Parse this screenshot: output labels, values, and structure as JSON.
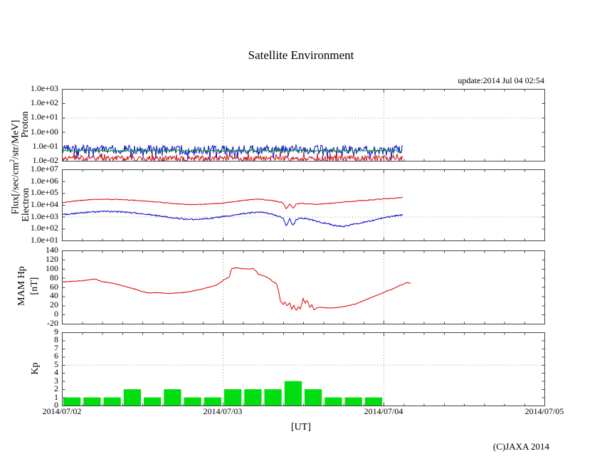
{
  "page": {
    "update_text": "update:2014 Jul 04 02:54",
    "copyright": "(C)JAXA 2014"
  },
  "labels": {
    "flux_pre": "Flux[/sec/cm",
    "flux_sup": "2",
    "flux_post": "/str/MeV]",
    "proton": "Proton",
    "electron": "Electron",
    "mam_line1": "MAM Hp",
    "mam_line2": "[nT]",
    "kp": "Kp"
  },
  "chart_data": {
    "type": "multi-panel",
    "title": "Satellite Environment",
    "xlabel": "[UT]",
    "x_categories_days": [
      "2014/07/02",
      "2014/07/03",
      "2014/07/04",
      "2014/07/05"
    ],
    "x_range_hours": [
      0,
      72
    ],
    "x_major_step_hours": 24,
    "x_minor_step_hours": 3,
    "grid": "dotted at day boundaries; horizontal dotted at Proton 1.0e+01, Electron 1.0e+03, Kp 5",
    "panels": [
      {
        "id": "proton",
        "axis_label": "Proton",
        "yscale": "log10",
        "ylim_log10": [
          -2,
          3
        ],
        "y_ticks": {
          "labels": [
            "1.0e+03",
            "1.0e+02",
            "1.0e+01",
            "1.0e+00",
            "1.0e-01",
            "1.0e-02"
          ],
          "values_log10": [
            3,
            2,
            1,
            0,
            -1,
            -2
          ]
        },
        "grid_y_log10": [
          1
        ],
        "render": "noise_band",
        "data_start_hour": 0,
        "data_end_hour": 50.9,
        "series": [
          {
            "name": "proton-channel-red",
            "color": "#cc1111",
            "center_log10": -1.85,
            "amp_log10": 0.2,
            "spike_prob": 0.1,
            "spike_amp_log10": 0.3,
            "spike_dir": 1
          },
          {
            "name": "proton-channel-blue",
            "color": "#1111cc",
            "center_log10": -1.22,
            "amp_log10": 0.32,
            "spike_prob": 0.1,
            "spike_amp_log10": 0.42,
            "spike_dir": -1
          },
          {
            "name": "proton-channel-green",
            "color": "#00a020",
            "center_log10": -1.3,
            "amp_log10": 0.06,
            "spike_prob": 0.03,
            "spike_amp_log10": 0.12,
            "spike_dir": 1
          }
        ]
      },
      {
        "id": "electron",
        "axis_label": "Electron",
        "yscale": "log10",
        "ylim_log10": [
          1,
          7
        ],
        "y_ticks": {
          "labels": [
            "1.0e+07",
            "1.0e+06",
            "1.0e+05",
            "1.0e+04",
            "1.0e+03",
            "1.0e+02",
            "1.0e+01"
          ],
          "values_log10": [
            7,
            6,
            5,
            4,
            3,
            2,
            1
          ]
        },
        "grid_y_log10": [
          3
        ],
        "render": "lines",
        "series": [
          {
            "name": "electron-high",
            "color": "#dd0000",
            "noise_log10": 0.035,
            "hours": [
              0,
              2,
              4,
              6,
              8,
              10,
              12,
              14,
              16,
              18,
              20,
              22,
              24,
              26,
              28,
              29,
              30,
              31,
              32,
              33,
              33.5,
              34,
              34.5,
              35,
              35.5,
              36,
              37,
              38,
              39,
              40,
              41,
              42,
              43,
              44,
              45,
              46,
              47,
              48,
              49,
              50,
              50.9
            ],
            "values": [
              16000,
              21000,
              27000,
              30000,
              29000,
              26000,
              22000,
              18000,
              14000,
              11500,
              10500,
              12000,
              14000,
              20000,
              27000,
              30000,
              28000,
              25000,
              20000,
              15000,
              4500,
              13000,
              5000,
              12000,
              13000,
              13500,
              12000,
              11000,
              12000,
              13500,
              15000,
              17000,
              19000,
              21000,
              23500,
              26000,
              29000,
              32000,
              35000,
              39000,
              42000
            ]
          },
          {
            "name": "electron-low",
            "color": "#0000cc",
            "noise_log10": 0.06,
            "hours": [
              0,
              2,
              4,
              6,
              8,
              10,
              12,
              14,
              16,
              18,
              20,
              22,
              24,
              26,
              28,
              29,
              30,
              31,
              32,
              33,
              33.5,
              34,
              34.5,
              35,
              35.5,
              36,
              37,
              38,
              39,
              40,
              41,
              42,
              43,
              44,
              45,
              46,
              47,
              48,
              49,
              50,
              50.9
            ],
            "values": [
              1500,
              1900,
              2400,
              2800,
              2700,
              2300,
              1800,
              1300,
              900,
              650,
              600,
              750,
              1000,
              1500,
              2100,
              2400,
              2300,
              1900,
              1300,
              800,
              150,
              700,
              180,
              600,
              700,
              750,
              600,
              420,
              300,
              230,
              170,
              150,
              200,
              260,
              340,
              450,
              600,
              800,
              1000,
              1250,
              1400
            ]
          }
        ]
      },
      {
        "id": "mam-hp",
        "axis_label": "MAM Hp [nT]",
        "yscale": "linear",
        "ylim": [
          -20,
          140
        ],
        "y_ticks": {
          "labels": [
            "140",
            "120",
            "100",
            "80",
            "60",
            "40",
            "20",
            "0",
            "-20"
          ],
          "values": [
            140,
            120,
            100,
            80,
            60,
            40,
            20,
            0,
            -20
          ]
        },
        "grid_y": [],
        "render": "lines",
        "series": [
          {
            "name": "mam-hp",
            "color": "#dd0000",
            "noise": 0.7,
            "hours": [
              0,
              1,
              2,
              3,
              4,
              5,
              5.5,
              6,
              7,
              8,
              9,
              10,
              11,
              12,
              13,
              14,
              15,
              16,
              17,
              18,
              19,
              20,
              21,
              22,
              23,
              24,
              24.7,
              25,
              25.3,
              26,
              27,
              28,
              28.5,
              29,
              29.3,
              30,
              30.5,
              31,
              31.5,
              32,
              32.3,
              32.6,
              33,
              33.3,
              33.6,
              34,
              34.3,
              34.6,
              35,
              35.3,
              35.6,
              36,
              36.3,
              36.6,
              37,
              37.3,
              37.6,
              38,
              38.5,
              39,
              40,
              41,
              42,
              43,
              44,
              45,
              46,
              47,
              48,
              49,
              50,
              50.5,
              51,
              51.5,
              52
            ],
            "values": [
              71,
              72,
              73,
              74,
              76,
              78,
              74,
              72,
              70,
              67,
              63,
              59,
              55,
              50,
              47,
              48,
              47,
              46,
              47,
              48,
              50,
              53,
              56,
              60,
              64,
              74,
              80,
              82,
              100,
              102,
              100,
              99,
              101,
              95,
              88,
              85,
              82,
              78,
              72,
              68,
              55,
              30,
              22,
              28,
              18,
              25,
              12,
              20,
              8,
              18,
              12,
              35,
              25,
              32,
              15,
              22,
              10,
              14,
              16,
              15,
              14,
              15,
              17,
              20,
              24,
              30,
              36,
              42,
              48,
              54,
              60,
              64,
              67,
              70,
              68
            ]
          }
        ]
      },
      {
        "id": "kp",
        "axis_label": "Kp",
        "yscale": "linear",
        "ylim": [
          0,
          9
        ],
        "y_ticks": {
          "labels": [
            "9",
            "8",
            "7",
            "6",
            "5",
            "4",
            "3",
            "2",
            "1",
            "0"
          ],
          "values": [
            9,
            8,
            7,
            6,
            5,
            4,
            3,
            2,
            1,
            0
          ]
        },
        "grid_y": [
          5
        ],
        "render": "bars",
        "bar_width_hours": 3,
        "bar_color": "#00dd11",
        "values": [
          1,
          1,
          1,
          2,
          1,
          2,
          1,
          1,
          2,
          2,
          2,
          3,
          2,
          1,
          1,
          1
        ]
      }
    ]
  }
}
